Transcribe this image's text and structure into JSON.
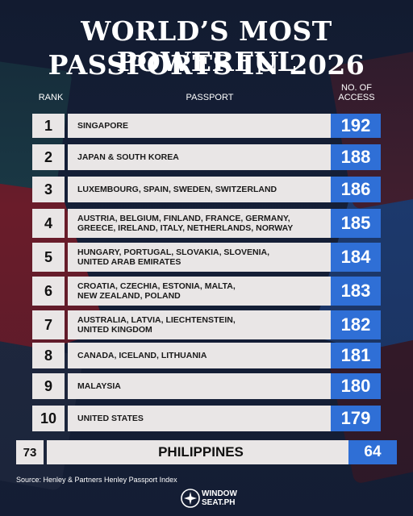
{
  "title": {
    "line1": "WORLD’S MOST POWERFUL",
    "line2": "PASSPORTS IN 2026"
  },
  "headers": {
    "rank": "RANK",
    "passport": "PASSPORT",
    "access_line1": "NO. OF",
    "access_line2": "ACCESS"
  },
  "rows": [
    {
      "rank": "1",
      "lines": [
        "SINGAPORE"
      ],
      "access": "192"
    },
    {
      "rank": "2",
      "lines": [
        "JAPAN & SOUTH KOREA"
      ],
      "access": "188"
    },
    {
      "rank": "3",
      "lines": [
        "LUXEMBOURG, SPAIN, SWEDEN, SWITZERLAND"
      ],
      "access": "186"
    },
    {
      "rank": "4",
      "lines": [
        "AUSTRIA, BELGIUM, FINLAND, FRANCE, GERMANY,",
        "GREECE, IRELAND, ITALY, NETHERLANDS, NORWAY"
      ],
      "access": "185"
    },
    {
      "rank": "5",
      "lines": [
        "HUNGARY, PORTUGAL, SLOVAKIA, SLOVENIA,",
        "UNITED ARAB EMIRATES"
      ],
      "access": "184"
    },
    {
      "rank": "6",
      "lines": [
        "CROATIA, CZECHIA, ESTONIA, MALTA,",
        "NEW ZEALAND, POLAND"
      ],
      "access": "183"
    },
    {
      "rank": "7",
      "lines": [
        "AUSTRALIA, LATVIA, LIECHTENSTEIN,",
        "UNITED KINGDOM"
      ],
      "access": "182"
    },
    {
      "rank": "8",
      "lines": [
        "CANADA, ICELAND, LITHUANIA"
      ],
      "access": "181"
    },
    {
      "rank": "9",
      "lines": [
        "MALAYSIA"
      ],
      "access": "180"
    },
    {
      "rank": "10",
      "lines": [
        "UNITED STATES"
      ],
      "access": "179"
    }
  ],
  "highlight": {
    "rank": "73",
    "country": "PHILIPPINES",
    "access": "64"
  },
  "source": "Source: Henley & Partners Henley Passport Index",
  "brand": {
    "line1": "WINDOW",
    "line2": "SEAT.PH"
  },
  "colors": {
    "accent_blue": "#2f6fd6",
    "row_bg": "#e9e6e6",
    "background": "#16213a"
  }
}
